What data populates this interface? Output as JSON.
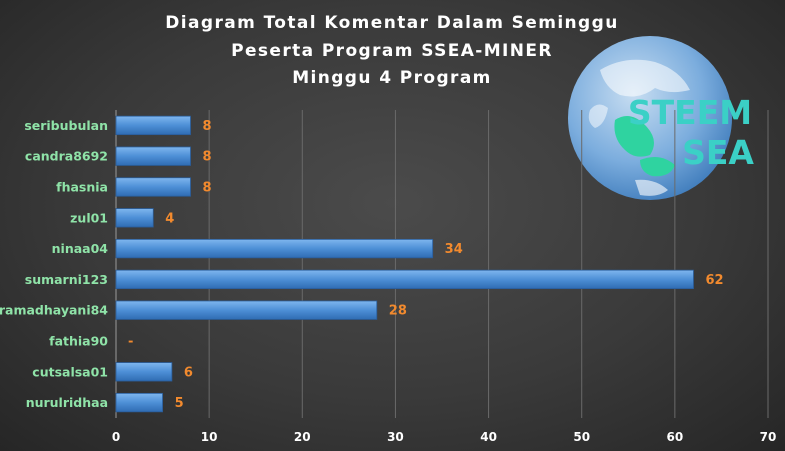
{
  "chart_data": {
    "type": "bar",
    "orientation": "horizontal",
    "title_lines": [
      "Diagram  Total  Komentar  Dalam  Seminggu",
      "Peserta  Program  SSEA-MINER",
      "Minggu  4  Program"
    ],
    "categories": [
      "seribubulan",
      "candra8692",
      "fhasnia",
      "zul01",
      "ninaa04",
      "sumarni123",
      "ramadhayani84",
      "fathia90",
      "cutsalsa01",
      "nurulridhaa"
    ],
    "values": [
      8,
      8,
      8,
      4,
      34,
      62,
      28,
      0,
      6,
      5
    ],
    "value_labels": [
      "8",
      "8",
      "8",
      "4",
      "34",
      "62",
      "28",
      "-",
      "6",
      "5"
    ],
    "xlim": [
      0,
      70
    ],
    "xticks": [
      "0",
      "10",
      "20",
      "30",
      "40",
      "50",
      "60",
      "70"
    ],
    "grid": "vertical",
    "bar_color": "#4d8fd6",
    "value_label_color": "#f28a2e",
    "category_label_color": "#8fe3a8"
  },
  "logo": {
    "line1": "STEEM",
    "line2": "SEA",
    "icon": "globe-icon"
  }
}
